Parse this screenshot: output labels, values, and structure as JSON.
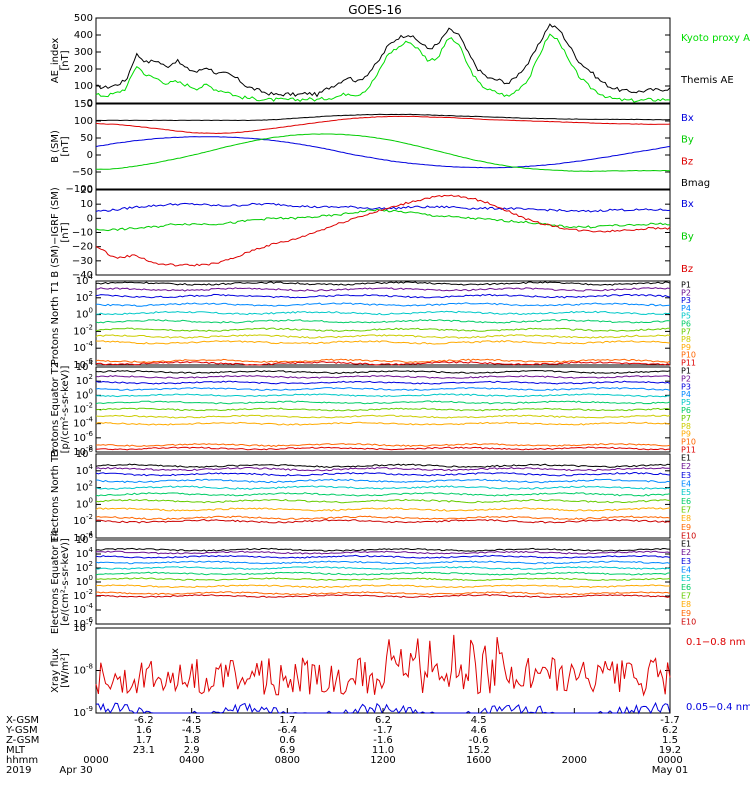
{
  "title": "GOES-16",
  "chart_data": [
    {
      "type": "line",
      "ylabel": "AE_index [nT]",
      "ylim": [
        0,
        520
      ],
      "ticks": [
        "0",
        "100",
        "200",
        "300",
        "400",
        "500"
      ],
      "grid": false,
      "legend_position": "right",
      "series": [
        {
          "name": "Themis AE",
          "color": "#000000",
          "values": [
            100,
            95,
            110,
            140,
            300,
            250,
            260,
            220,
            260,
            210,
            190,
            220,
            180,
            180,
            150,
            100,
            80,
            60,
            50,
            55,
            50,
            60,
            50,
            90,
            120,
            160,
            130,
            180,
            250,
            350,
            400,
            420,
            380,
            330,
            360,
            450,
            420,
            300,
            200,
            150,
            140,
            120,
            180,
            250,
            360,
            480,
            450,
            350,
            250,
            200,
            140,
            100,
            80,
            70,
            70,
            80,
            80,
            90
          ]
        },
        {
          "name": "Kyoto proxy AE",
          "color": "#00dd00",
          "values": [
            50,
            45,
            60,
            90,
            230,
            170,
            150,
            120,
            130,
            110,
            90,
            110,
            80,
            70,
            40,
            30,
            25,
            20,
            20,
            20,
            20,
            25,
            20,
            30,
            40,
            60,
            50,
            90,
            180,
            300,
            340,
            380,
            330,
            260,
            280,
            400,
            360,
            220,
            120,
            80,
            60,
            40,
            90,
            150,
            290,
            420,
            380,
            250,
            160,
            100,
            60,
            30,
            20,
            15,
            15,
            20,
            20,
            25
          ]
        }
      ]
    },
    {
      "type": "line",
      "ylabel": "B (SM) [nT]",
      "ylim": [
        -110,
        150
      ],
      "ticks": [
        "−100",
        "−50",
        "0",
        "50",
        "100",
        "150"
      ],
      "grid": false,
      "legend_position": "right",
      "series": [
        {
          "name": "Bx",
          "color": "#0000dd",
          "values": [
            20,
            30,
            38,
            44,
            48,
            50,
            50,
            48,
            44,
            38,
            30,
            20,
            8,
            -5,
            -15,
            -25,
            -32,
            -38,
            -42,
            -44,
            -45,
            -44,
            -40,
            -35,
            -28,
            -20,
            -10,
            0,
            10,
            20
          ]
        },
        {
          "name": "By",
          "color": "#00cc00",
          "values": [
            -50,
            -48,
            -40,
            -30,
            -18,
            -5,
            10,
            25,
            38,
            48,
            55,
            58,
            58,
            55,
            48,
            38,
            25,
            10,
            -5,
            -20,
            -32,
            -42,
            -48,
            -52,
            -55,
            -56,
            -55,
            -54,
            -54,
            -54
          ]
        },
        {
          "name": "Bz",
          "color": "#dd0000",
          "values": [
            90,
            88,
            82,
            75,
            68,
            62,
            60,
            62,
            68,
            76,
            84,
            92,
            100,
            106,
            110,
            112,
            112,
            110,
            108,
            105,
            102,
            100,
            98,
            96,
            94,
            92,
            90,
            89,
            88,
            88
          ]
        },
        {
          "name": "Bmag",
          "color": "#000000",
          "values": [
            100,
            100,
            100,
            100,
            100,
            100,
            100,
            100,
            100,
            102,
            106,
            110,
            114,
            116,
            118,
            118,
            118,
            116,
            114,
            112,
            110,
            108,
            106,
            105,
            104,
            103,
            103,
            103,
            102,
            102
          ]
        }
      ]
    },
    {
      "type": "line",
      "ylabel": "B (SM)−IGRF (SM) [nT]",
      "ylim": [
        -40,
        20
      ],
      "ticks": [
        "−40",
        "−30",
        "−20",
        "−10",
        "0",
        "10",
        "20"
      ],
      "grid": false,
      "legend_position": "right",
      "series": [
        {
          "name": "Bx",
          "color": "#0000dd",
          "values": [
            5,
            6,
            8,
            9,
            10,
            10,
            9,
            9,
            10,
            10,
            9,
            8,
            8,
            8,
            7,
            7,
            8,
            8,
            8,
            7,
            7,
            7,
            6,
            6,
            5,
            5,
            6,
            6,
            6,
            6
          ]
        },
        {
          "name": "By",
          "color": "#00cc00",
          "values": [
            -8,
            -8,
            -7,
            -6,
            -4,
            -4,
            -4,
            -3,
            -1,
            0,
            0,
            1,
            2,
            4,
            6,
            5,
            4,
            2,
            1,
            0,
            -1,
            -2,
            -3,
            -5,
            -6,
            -6,
            -5,
            -5,
            -4,
            -4
          ]
        },
        {
          "name": "Bz",
          "color": "#dd0000",
          "values": [
            -20,
            -28,
            -26,
            -32,
            -33,
            -33,
            -32,
            -28,
            -22,
            -18,
            -15,
            -10,
            -5,
            0,
            4,
            8,
            12,
            15,
            16,
            14,
            10,
            4,
            -2,
            -5,
            -8,
            -9,
            -9,
            -8,
            -7,
            -7
          ]
        }
      ]
    },
    {
      "type": "line",
      "ylabel": "Protons North T1",
      "ylim": [
        -6,
        4
      ],
      "log_scale": true,
      "ticks": [
        "10^-6",
        "10^-4",
        "10^-2",
        "10^0",
        "10^2",
        "10^4"
      ],
      "grid": false,
      "legend_position": "right",
      "series": [
        {
          "name": "P1",
          "color": "#000000",
          "level": 3.7
        },
        {
          "name": "P2",
          "color": "#6a0d91",
          "level": 3.0
        },
        {
          "name": "P3",
          "color": "#0000dd",
          "level": 2.2
        },
        {
          "name": "P4",
          "color": "#0088ff",
          "level": 1.2
        },
        {
          "name": "P5",
          "color": "#00c8c8",
          "level": 0.2
        },
        {
          "name": "P6",
          "color": "#00cc66",
          "level": -0.8
        },
        {
          "name": "P7",
          "color": "#66cc00",
          "level": -1.8
        },
        {
          "name": "P8",
          "color": "#cccc00",
          "level": -2.6
        },
        {
          "name": "P9",
          "color": "#ffaa00",
          "level": -3.3
        },
        {
          "name": "P10",
          "color": "#ff6600",
          "level": -5.5
        },
        {
          "name": "P11",
          "color": "#dd0000",
          "level": -5.8
        }
      ]
    },
    {
      "type": "line",
      "ylabel": "Protons Equator T2 [p/(cm²-s-sr-keV)]",
      "ylim": [
        -8,
        4
      ],
      "log_scale": true,
      "ticks": [
        "10^-8",
        "10^-6",
        "10^-4",
        "10^-2",
        "10^0",
        "10^2",
        "10^4"
      ],
      "grid": false,
      "legend_position": "right",
      "series": [
        {
          "name": "P1",
          "color": "#000000",
          "level": 3.3
        },
        {
          "name": "P2",
          "color": "#6a0d91",
          "level": 2.6
        },
        {
          "name": "P3",
          "color": "#0000dd",
          "level": 1.8
        },
        {
          "name": "P4",
          "color": "#0088ff",
          "level": 0.9
        },
        {
          "name": "P5",
          "color": "#00c8c8",
          "level": 0.0
        },
        {
          "name": "P6",
          "color": "#00cc66",
          "level": -1.0
        },
        {
          "name": "P7",
          "color": "#66cc00",
          "level": -2.0
        },
        {
          "name": "P8",
          "color": "#cccc00",
          "level": -3.0
        },
        {
          "name": "P9",
          "color": "#ffaa00",
          "level": -4.0
        },
        {
          "name": "P10",
          "color": "#ff6600",
          "level": -7.0
        },
        {
          "name": "P11",
          "color": "#dd0000",
          "level": -7.5
        }
      ]
    },
    {
      "type": "line",
      "ylabel": "Electrons North T3",
      "ylim": [
        -4,
        6
      ],
      "log_scale": true,
      "ticks": [
        "10^-4",
        "10^-2",
        "10^0",
        "10^2",
        "10^4",
        "10^6"
      ],
      "grid": false,
      "legend_position": "right",
      "series": [
        {
          "name": "E1",
          "color": "#000000",
          "level": 4.6
        },
        {
          "name": "E2",
          "color": "#6a0d91",
          "level": 4.2
        },
        {
          "name": "E3",
          "color": "#0000dd",
          "level": 3.6
        },
        {
          "name": "E4",
          "color": "#0088ff",
          "level": 2.8
        },
        {
          "name": "E5",
          "color": "#00c8c8",
          "level": 2.0
        },
        {
          "name": "E6",
          "color": "#00cc66",
          "level": 1.2
        },
        {
          "name": "E7",
          "color": "#66cc00",
          "level": 0.4
        },
        {
          "name": "E8",
          "color": "#ffaa00",
          "level": -0.6
        },
        {
          "name": "E9",
          "color": "#ff6600",
          "level": -1.6
        },
        {
          "name": "E10",
          "color": "#cc0000",
          "level": -2.0
        }
      ]
    },
    {
      "type": "line",
      "ylabel": "Electrons Equator T4 [e/(cm²-s-sr-keV)]",
      "ylim": [
        -6,
        6
      ],
      "log_scale": true,
      "ticks": [
        "10^-6",
        "10^-4",
        "10^-2",
        "10^0",
        "10^2",
        "10^4",
        "10^6"
      ],
      "grid": false,
      "legend_position": "right",
      "series": [
        {
          "name": "E1",
          "color": "#000000",
          "level": 4.6
        },
        {
          "name": "E2",
          "color": "#6a0d91",
          "level": 4.2
        },
        {
          "name": "E3",
          "color": "#0000dd",
          "level": 3.6
        },
        {
          "name": "E4",
          "color": "#0088ff",
          "level": 2.8
        },
        {
          "name": "E5",
          "color": "#00c8c8",
          "level": 2.0
        },
        {
          "name": "E6",
          "color": "#00cc66",
          "level": 1.2
        },
        {
          "name": "E7",
          "color": "#66cc00",
          "level": 0.4
        },
        {
          "name": "E8",
          "color": "#ffaa00",
          "level": -0.6
        },
        {
          "name": "E9",
          "color": "#ff6600",
          "level": -1.6
        },
        {
          "name": "E10",
          "color": "#cc0000",
          "level": -2.0
        }
      ]
    },
    {
      "type": "line",
      "ylabel": "Xray flux [W/m²]",
      "ylim": [
        -9,
        -7
      ],
      "log_scale": true,
      "ticks": [
        "10^-9",
        "10^-8",
        "10^-7"
      ],
      "grid": false,
      "legend_position": "right",
      "series": [
        {
          "name": "0.1−0.8 nm",
          "color": "#dd0000",
          "level": -8.0
        },
        {
          "name": "0.05−0.4 nm",
          "color": "#0000dd",
          "level": -9.0
        }
      ]
    }
  ],
  "xaxis": {
    "row_labels": [
      "X-GSM",
      "Y-GSM",
      "Z-GSM",
      "MLT",
      "hhmm",
      "2019"
    ],
    "columns": [
      {
        "hhmm": "0000",
        "date": "Apr 30",
        "x": "",
        "y": "",
        "z": "",
        "mlt": ""
      },
      {
        "hhmm": "",
        "date": "",
        "x": "-6.2",
        "y": "1.6",
        "z": "1.7",
        "mlt": "23.1"
      },
      {
        "hhmm": "0400",
        "date": "",
        "x": "-4.5",
        "y": "-4.5",
        "z": "1.8",
        "mlt": "2.9"
      },
      {
        "hhmm": "0800",
        "date": "",
        "x": "1.7",
        "y": "-6.4",
        "z": "0.6",
        "mlt": "6.9"
      },
      {
        "hhmm": "1200",
        "date": "",
        "x": "6.2",
        "y": "-1.7",
        "z": "-1.6",
        "mlt": "11.0"
      },
      {
        "hhmm": "1600",
        "date": "",
        "x": "4.5",
        "y": "4.6",
        "z": "-0.6",
        "mlt": "15.2"
      },
      {
        "hhmm": "2000",
        "date": "",
        "x": "",
        "y": "",
        "z": "",
        "mlt": ""
      },
      {
        "hhmm": "0000",
        "date": "May 01",
        "x": "-1.7",
        "y": "6.2",
        "z": "1.5",
        "mlt": "19.2"
      }
    ]
  }
}
